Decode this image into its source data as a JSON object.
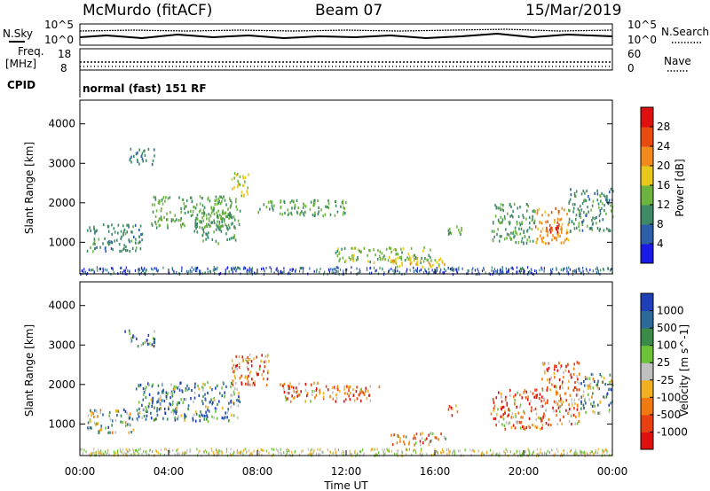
{
  "header": {
    "radar": "McMurdo (fitACF)",
    "beam": "Beam 07",
    "date": "15/Mar/2019"
  },
  "top_panels": {
    "nsky_label": "N.Sky",
    "nsearch_label": "N.Search",
    "left_ticks": [
      "10^5",
      "10^0"
    ],
    "right_ticks": [
      "10^5",
      "10^0"
    ],
    "freq_label_line1": "Freq.",
    "freq_label_line2": "[MHz]",
    "freq_ticks": [
      "18",
      "8"
    ],
    "nave_label": "Nave",
    "nave_ticks": [
      "60",
      "0"
    ],
    "cpid_label": "CPID",
    "cpid_text": "normal (fast) 151 RF"
  },
  "colors": {
    "power": [
      "#1a1ae6",
      "#2c5fa8",
      "#3f8a66",
      "#6db33f",
      "#e8c81a",
      "#f08a1a",
      "#e84a10",
      "#e01010"
    ],
    "velocity": [
      "#1f3fb8",
      "#2c6a9a",
      "#3a8a4a",
      "#6cc33a",
      "#c0c0c0",
      "#f0b020",
      "#f07a10",
      "#e84010",
      "#e01010"
    ],
    "dot": "#555555"
  },
  "chart_data": [
    {
      "type": "heatmap",
      "name": "power",
      "ylabel": "Slant Range [km]",
      "y_ticks": [
        "1000",
        "2000",
        "3000",
        "4000"
      ],
      "y_values": [
        1000,
        2000,
        3000,
        4000
      ],
      "ylim": [
        200,
        4600
      ],
      "xlim_hours": [
        0,
        24
      ],
      "colorbar_label": "Power [dB]",
      "colorbar_ticks": [
        "4",
        "8",
        "12",
        "16",
        "20",
        "24",
        "28"
      ],
      "colorbar_range": [
        0,
        32
      ],
      "blobs": [
        {
          "t": [
            0.3,
            2.8
          ],
          "r": [
            800,
            1500
          ],
          "v": 10
        },
        {
          "t": [
            2.2,
            3.4
          ],
          "r": [
            3000,
            3400
          ],
          "v": 9
        },
        {
          "t": [
            3.2,
            7.2
          ],
          "r": [
            1400,
            2200
          ],
          "v": 13
        },
        {
          "t": [
            5.0,
            7.0
          ],
          "r": [
            1000,
            1800
          ],
          "v": 11
        },
        {
          "t": [
            6.8,
            7.6
          ],
          "r": [
            2200,
            2800
          ],
          "v": 17
        },
        {
          "t": [
            8.0,
            12.0
          ],
          "r": [
            1700,
            2100
          ],
          "v": 12
        },
        {
          "t": [
            11.5,
            16.0
          ],
          "r": [
            500,
            900
          ],
          "v": 14
        },
        {
          "t": [
            14.0,
            16.5
          ],
          "r": [
            400,
            650
          ],
          "v": 18
        },
        {
          "t": [
            16.5,
            17.2
          ],
          "r": [
            1200,
            1500
          ],
          "v": 12
        },
        {
          "t": [
            18.5,
            20.5
          ],
          "r": [
            1000,
            2000
          ],
          "v": 11
        },
        {
          "t": [
            20.5,
            22.0
          ],
          "r": [
            1000,
            1900
          ],
          "v": 22
        },
        {
          "t": [
            21.0,
            21.7
          ],
          "r": [
            1200,
            1500
          ],
          "v": 28
        },
        {
          "t": [
            22.0,
            24.0
          ],
          "r": [
            1300,
            2400
          ],
          "v": 10
        }
      ]
    },
    {
      "type": "heatmap",
      "name": "velocity",
      "ylabel": "Slant Range [km]",
      "y_ticks": [
        "1000",
        "2000",
        "3000",
        "4000"
      ],
      "y_values": [
        1000,
        2000,
        3000,
        4000
      ],
      "ylim": [
        200,
        4600
      ],
      "xlim_hours": [
        0,
        24
      ],
      "x_ticks": [
        "00:00",
        "04:00",
        "08:00",
        "12:00",
        "16:00",
        "20:00",
        "00:00"
      ],
      "x_values": [
        0,
        4,
        8,
        12,
        16,
        20,
        24
      ],
      "xlabel": "Time UT",
      "colorbar_label": "Velocity [m s^-1]",
      "colorbar_ticks": [
        "1000",
        "500",
        "100",
        "25",
        "-25",
        "-100",
        "-500",
        "-1000"
      ],
      "blobs": [
        {
          "t": [
            0.3,
            2.4
          ],
          "r": [
            800,
            1400
          ],
          "v": 3
        },
        {
          "t": [
            2.0,
            3.4
          ],
          "r": [
            3000,
            3400
          ],
          "v": 2
        },
        {
          "t": [
            2.5,
            7.2
          ],
          "r": [
            1100,
            2100
          ],
          "v": 2
        },
        {
          "t": [
            6.8,
            8.5
          ],
          "r": [
            2000,
            2800
          ],
          "v": 6
        },
        {
          "t": [
            9.0,
            11.0
          ],
          "r": [
            1600,
            2100
          ],
          "v": 6
        },
        {
          "t": [
            11.0,
            13.5
          ],
          "r": [
            1600,
            2000
          ],
          "v": 6
        },
        {
          "t": [
            14.0,
            16.5
          ],
          "r": [
            500,
            800
          ],
          "v": 5
        },
        {
          "t": [
            16.5,
            17.0
          ],
          "r": [
            1200,
            1500
          ],
          "v": 6
        },
        {
          "t": [
            18.5,
            20.8
          ],
          "r": [
            900,
            1900
          ],
          "v": 6
        },
        {
          "t": [
            20.8,
            22.5
          ],
          "r": [
            1000,
            2600
          ],
          "v": 6
        },
        {
          "t": [
            22.5,
            24.0
          ],
          "r": [
            1300,
            2300
          ],
          "v": 3
        }
      ]
    }
  ]
}
